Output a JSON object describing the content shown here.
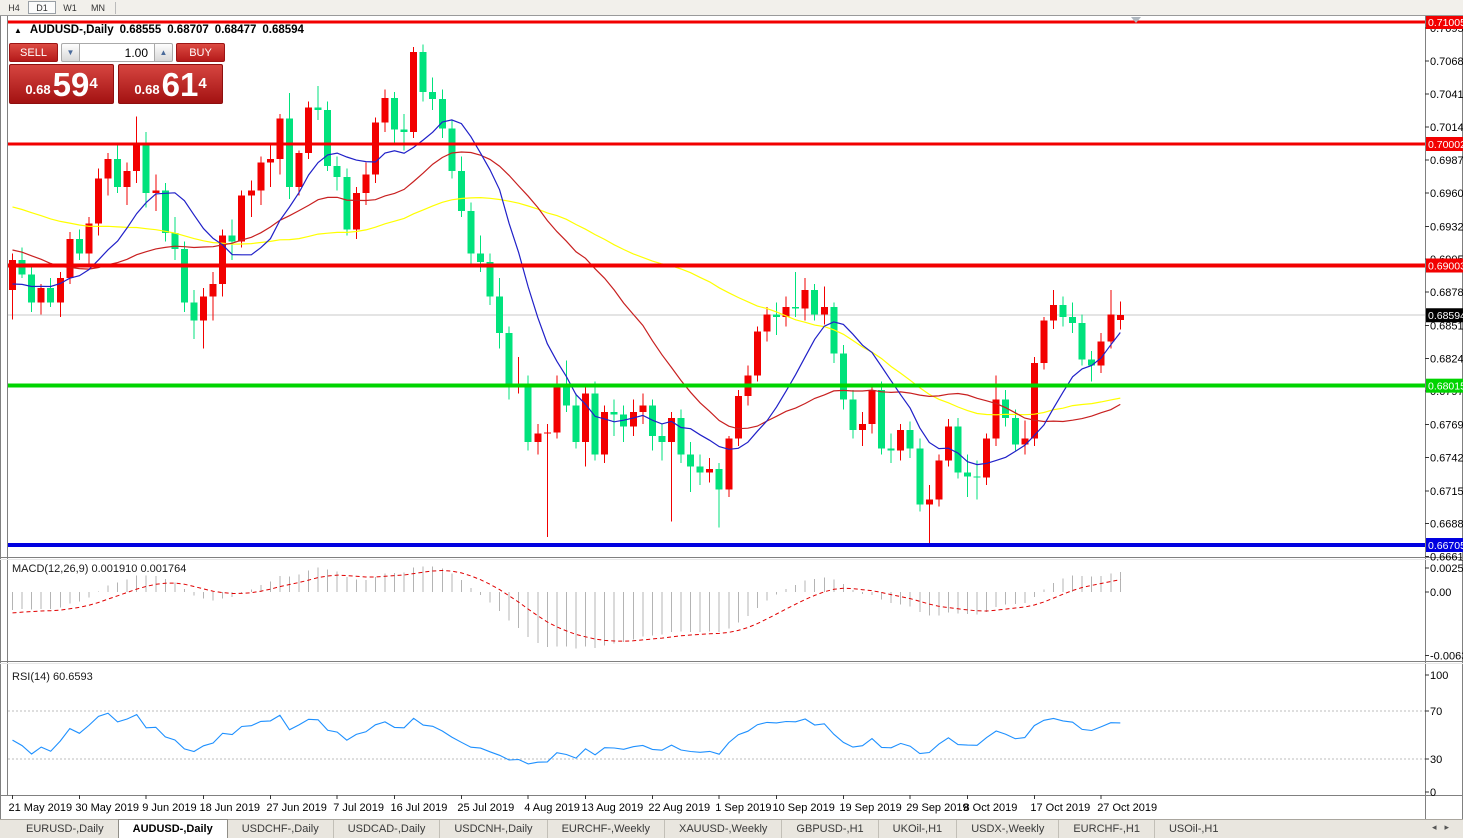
{
  "toolbar": {
    "timeframes": [
      {
        "label": "H4",
        "active": false
      },
      {
        "label": "D1",
        "active": true
      },
      {
        "label": "W1",
        "active": false
      },
      {
        "label": "MN",
        "active": false
      }
    ]
  },
  "chart": {
    "symbol_label": "AUDUSD-,Daily",
    "open": "0.68555",
    "high": "0.68707",
    "low": "0.68477",
    "close": "0.68594",
    "collapse_icon": "▲"
  },
  "trade_panel": {
    "sell_label": "SELL",
    "buy_label": "BUY",
    "volume": "1.00",
    "spin_down": "▼",
    "spin_up": "▲",
    "sell_price": {
      "small": "0.68",
      "big": "59",
      "sup": "4"
    },
    "buy_price": {
      "small": "0.68",
      "big": "61",
      "sup": "4"
    }
  },
  "indicators": {
    "macd": {
      "name": "MACD(12,26,9)",
      "value_main": "0.001910",
      "value_signal": "0.001764"
    },
    "rsi": {
      "name": "RSI(14)",
      "value": "60.6593"
    }
  },
  "tabs": [
    {
      "label": "EURUSD-,Daily",
      "active": false
    },
    {
      "label": "AUDUSD-,Daily",
      "active": true
    },
    {
      "label": "USDCHF-,Daily",
      "active": false
    },
    {
      "label": "USDCAD-,Daily",
      "active": false
    },
    {
      "label": "USDCNH-,Daily",
      "active": false
    },
    {
      "label": "EURCHF-,Weekly",
      "active": false
    },
    {
      "label": "XAUUSD-,Weekly",
      "active": false
    },
    {
      "label": "GBPUSD-,H1",
      "active": false
    },
    {
      "label": "UKOil-,H1",
      "active": false
    },
    {
      "label": "USDX-,Weekly",
      "active": false
    },
    {
      "label": "EURCHF-,H1",
      "active": false
    },
    {
      "label": "USOil-,H1",
      "active": false
    }
  ],
  "tab_scroll": {
    "left": "◂",
    "right": "▸"
  },
  "chart_data": {
    "type": "candlestick+indicators",
    "symbol": "AUDUSD",
    "timeframe": "Daily",
    "colors": {
      "bull": "#F20000",
      "bear": "#00E27C",
      "ma_fast": "#2020C8",
      "ma_mid": "#C82020",
      "ma_slow": "#FFFF00",
      "macd_hist": "#B4B4B4",
      "macd_signal": "#E00000",
      "rsi_line": "#1E90FF",
      "rsi_levels": "#BDBDBD",
      "bid_line": "#C8C8C8",
      "bid_label_bg": "#000000"
    },
    "ma_periods": {
      "fast": 10,
      "mid": 25,
      "slow": 50
    },
    "price_axis_ticks": [
      "0.70955",
      "0.70685",
      "0.70415",
      "0.70140",
      "0.69870",
      "0.69600",
      "0.69325",
      "0.69055",
      "0.68785",
      "0.68510",
      "0.68240",
      "0.67970",
      "0.67695",
      "0.67425",
      "0.67150",
      "0.66880",
      "0.66610"
    ],
    "levels": [
      {
        "price": 0.71005,
        "label": "0.71005",
        "color": "#F20000",
        "width": 3,
        "label_fg": "#ffffff"
      },
      {
        "price": 0.70002,
        "label": "0.70002",
        "color": "#F20000",
        "width": 3,
        "label_fg": "#ffffff"
      },
      {
        "price": 0.69003,
        "label": "0.69003",
        "color": "#F20000",
        "width": 4,
        "label_fg": "#ffffff"
      },
      {
        "price": 0.68015,
        "label": "0.68015",
        "color": "#00D400",
        "width": 4,
        "label_fg": "#ffffff"
      },
      {
        "price": 0.66705,
        "label": "0.66705",
        "color": "#0000E0",
        "width": 4,
        "label_fg": "#ffffff"
      }
    ],
    "bid": {
      "price": 0.68594,
      "label": "0.68594"
    },
    "macd_axis_ticks": [
      {
        "value": 0.002574,
        "label": "0.002574"
      },
      {
        "value": 0.0,
        "label": "0.00"
      },
      {
        "value": -0.006326,
        "label": "-0.006326"
      }
    ],
    "rsi_axis_ticks": [
      {
        "value": 100,
        "label": "100"
      },
      {
        "value": 70,
        "label": "70"
      },
      {
        "value": 30,
        "label": "30"
      },
      {
        "value": 0,
        "label": "0"
      }
    ],
    "rsi_levels": [
      70,
      30
    ],
    "time_labels": [
      {
        "i": 0,
        "t": "21 May 2019"
      },
      {
        "i": 7,
        "t": "30 May 2019"
      },
      {
        "i": 14,
        "t": "9 Jun 2019"
      },
      {
        "i": 20,
        "t": "18 Jun 2019"
      },
      {
        "i": 27,
        "t": "27 Jun 2019"
      },
      {
        "i": 34,
        "t": "7 Jul 2019"
      },
      {
        "i": 40,
        "t": "16 Jul 2019"
      },
      {
        "i": 47,
        "t": "25 Jul 2019"
      },
      {
        "i": 54,
        "t": "4 Aug 2019"
      },
      {
        "i": 60,
        "t": "13 Aug 2019"
      },
      {
        "i": 67,
        "t": "22 Aug 2019"
      },
      {
        "i": 74,
        "t": "1 Sep 2019"
      },
      {
        "i": 80,
        "t": "10 Sep 2019"
      },
      {
        "i": 87,
        "t": "19 Sep 2019"
      },
      {
        "i": 94,
        "t": "29 Sep 2019"
      },
      {
        "i": 100,
        "t": "8 Oct 2019"
      },
      {
        "i": 107,
        "t": "17 Oct 2019"
      },
      {
        "i": 114,
        "t": "27 Oct 2019"
      }
    ],
    "pre_closes": [
      0.7005,
      0.6998,
      0.7002,
      0.7008,
      0.7,
      0.6995,
      0.6988,
      0.6992,
      0.6985,
      0.6978,
      0.6982,
      0.699,
      0.6998,
      0.7005,
      0.701,
      0.7002,
      0.6995,
      0.6988,
      0.698,
      0.6972,
      0.6965,
      0.6958,
      0.695,
      0.696,
      0.6952,
      0.6945,
      0.6938,
      0.6945,
      0.6952,
      0.6958,
      0.695,
      0.6942,
      0.6935,
      0.6945,
      0.6938,
      0.693,
      0.6922,
      0.6912,
      0.6905,
      0.6898,
      0.6905,
      0.6896,
      0.6888,
      0.688,
      0.6872,
      0.6865,
      0.6878,
      0.689,
      0.6885,
      0.6892
    ],
    "candles": [
      [
        0.688,
        0.691,
        0.6856,
        0.6905
      ],
      [
        0.6905,
        0.6915,
        0.689,
        0.6893
      ],
      [
        0.6893,
        0.69,
        0.6862,
        0.687
      ],
      [
        0.687,
        0.6885,
        0.686,
        0.6882
      ],
      [
        0.6882,
        0.689,
        0.6866,
        0.687
      ],
      [
        0.687,
        0.6895,
        0.6858,
        0.689
      ],
      [
        0.689,
        0.6928,
        0.6885,
        0.6922
      ],
      [
        0.6922,
        0.693,
        0.6905,
        0.691
      ],
      [
        0.691,
        0.694,
        0.69,
        0.6935
      ],
      [
        0.6935,
        0.698,
        0.6925,
        0.6972
      ],
      [
        0.6972,
        0.6993,
        0.6958,
        0.6988
      ],
      [
        0.6988,
        0.7,
        0.696,
        0.6965
      ],
      [
        0.6965,
        0.6985,
        0.695,
        0.6978
      ],
      [
        0.6978,
        0.7023,
        0.6968,
        0.7
      ],
      [
        0.7,
        0.701,
        0.6948,
        0.696
      ],
      [
        0.696,
        0.6975,
        0.6945,
        0.6962
      ],
      [
        0.6962,
        0.6968,
        0.692,
        0.6927
      ],
      [
        0.6927,
        0.694,
        0.6905,
        0.6914
      ],
      [
        0.6914,
        0.692,
        0.6862,
        0.687
      ],
      [
        0.687,
        0.688,
        0.684,
        0.6855
      ],
      [
        0.6855,
        0.6882,
        0.6832,
        0.6875
      ],
      [
        0.6875,
        0.6895,
        0.6855,
        0.6885
      ],
      [
        0.6885,
        0.693,
        0.6875,
        0.6925
      ],
      [
        0.6925,
        0.6938,
        0.6905,
        0.692
      ],
      [
        0.692,
        0.6962,
        0.6915,
        0.6958
      ],
      [
        0.6958,
        0.697,
        0.694,
        0.6962
      ],
      [
        0.6962,
        0.699,
        0.695,
        0.6985
      ],
      [
        0.6985,
        0.7,
        0.6965,
        0.6988
      ],
      [
        0.6988,
        0.7025,
        0.6975,
        0.7021
      ],
      [
        0.7021,
        0.7042,
        0.6955,
        0.6965
      ],
      [
        0.6965,
        0.6995,
        0.6958,
        0.6993
      ],
      [
        0.6993,
        0.7035,
        0.6988,
        0.703
      ],
      [
        0.703,
        0.7048,
        0.702,
        0.7028
      ],
      [
        0.7028,
        0.7035,
        0.6978,
        0.6982
      ],
      [
        0.6982,
        0.699,
        0.6962,
        0.6973
      ],
      [
        0.6973,
        0.698,
        0.6925,
        0.693
      ],
      [
        0.693,
        0.6965,
        0.6922,
        0.696
      ],
      [
        0.696,
        0.6985,
        0.695,
        0.6975
      ],
      [
        0.6975,
        0.7022,
        0.6968,
        0.7018
      ],
      [
        0.7018,
        0.7045,
        0.701,
        0.7038
      ],
      [
        0.7038,
        0.7043,
        0.7,
        0.7012
      ],
      [
        0.7012,
        0.7025,
        0.6995,
        0.701
      ],
      [
        0.701,
        0.708,
        0.7005,
        0.7076
      ],
      [
        0.7076,
        0.7082,
        0.7035,
        0.7043
      ],
      [
        0.7043,
        0.7055,
        0.7028,
        0.7037
      ],
      [
        0.7037,
        0.7045,
        0.7005,
        0.7013
      ],
      [
        0.7013,
        0.702,
        0.6972,
        0.6978
      ],
      [
        0.6978,
        0.699,
        0.694,
        0.6945
      ],
      [
        0.6945,
        0.6952,
        0.69,
        0.691
      ],
      [
        0.691,
        0.6925,
        0.6895,
        0.6903
      ],
      [
        0.6903,
        0.691,
        0.6868,
        0.6875
      ],
      [
        0.6875,
        0.689,
        0.6832,
        0.6845
      ],
      [
        0.6845,
        0.685,
        0.679,
        0.68
      ],
      [
        0.68,
        0.6825,
        0.6795,
        0.6802
      ],
      [
        0.6802,
        0.681,
        0.6748,
        0.6755
      ],
      [
        0.6755,
        0.677,
        0.6745,
        0.6762
      ],
      [
        0.6762,
        0.677,
        0.6677,
        0.6763
      ],
      [
        0.6763,
        0.681,
        0.6758,
        0.68
      ],
      [
        0.68,
        0.6822,
        0.678,
        0.6785
      ],
      [
        0.6785,
        0.6795,
        0.675,
        0.6755
      ],
      [
        0.6755,
        0.68,
        0.6735,
        0.6795
      ],
      [
        0.6795,
        0.6805,
        0.674,
        0.6745
      ],
      [
        0.6745,
        0.6785,
        0.6738,
        0.678
      ],
      [
        0.678,
        0.679,
        0.676,
        0.6778
      ],
      [
        0.6778,
        0.6785,
        0.6755,
        0.6768
      ],
      [
        0.6768,
        0.679,
        0.676,
        0.678
      ],
      [
        0.678,
        0.6795,
        0.677,
        0.6785
      ],
      [
        0.6785,
        0.679,
        0.6748,
        0.676
      ],
      [
        0.676,
        0.677,
        0.674,
        0.6755
      ],
      [
        0.6755,
        0.678,
        0.669,
        0.6775
      ],
      [
        0.6775,
        0.6782,
        0.6738,
        0.6745
      ],
      [
        0.6745,
        0.6755,
        0.6714,
        0.6735
      ],
      [
        0.6735,
        0.6745,
        0.672,
        0.673
      ],
      [
        0.673,
        0.6742,
        0.6722,
        0.6733
      ],
      [
        0.6733,
        0.6738,
        0.6685,
        0.6716
      ],
      [
        0.6716,
        0.676,
        0.671,
        0.6758
      ],
      [
        0.6758,
        0.6798,
        0.6752,
        0.6793
      ],
      [
        0.6793,
        0.6818,
        0.6785,
        0.681
      ],
      [
        0.681,
        0.685,
        0.6805,
        0.6846
      ],
      [
        0.6846,
        0.6866,
        0.6838,
        0.686
      ],
      [
        0.686,
        0.687,
        0.6843,
        0.6858
      ],
      [
        0.6858,
        0.6875,
        0.685,
        0.6866
      ],
      [
        0.6866,
        0.6895,
        0.6858,
        0.6865
      ],
      [
        0.6865,
        0.689,
        0.6855,
        0.688
      ],
      [
        0.688,
        0.6885,
        0.6855,
        0.686
      ],
      [
        0.686,
        0.6883,
        0.6852,
        0.6866
      ],
      [
        0.6866,
        0.687,
        0.682,
        0.6828
      ],
      [
        0.6828,
        0.6835,
        0.6782,
        0.679
      ],
      [
        0.679,
        0.6798,
        0.6758,
        0.6765
      ],
      [
        0.6765,
        0.678,
        0.6752,
        0.677
      ],
      [
        0.677,
        0.68,
        0.6762,
        0.6798
      ],
      [
        0.6798,
        0.6805,
        0.6745,
        0.675
      ],
      [
        0.675,
        0.6762,
        0.6738,
        0.6748
      ],
      [
        0.6748,
        0.677,
        0.674,
        0.6765
      ],
      [
        0.6765,
        0.6772,
        0.6742,
        0.675
      ],
      [
        0.675,
        0.6758,
        0.6698,
        0.6704
      ],
      [
        0.6704,
        0.672,
        0.667,
        0.6708
      ],
      [
        0.6708,
        0.6745,
        0.6702,
        0.674
      ],
      [
        0.674,
        0.6774,
        0.6735,
        0.6768
      ],
      [
        0.6768,
        0.6775,
        0.6725,
        0.673
      ],
      [
        0.673,
        0.6745,
        0.671,
        0.6727
      ],
      [
        0.6727,
        0.674,
        0.6708,
        0.6726
      ],
      [
        0.6726,
        0.6762,
        0.672,
        0.6758
      ],
      [
        0.6758,
        0.681,
        0.6752,
        0.679
      ],
      [
        0.679,
        0.6798,
        0.6768,
        0.6775
      ],
      [
        0.6775,
        0.6782,
        0.6748,
        0.6753
      ],
      [
        0.6753,
        0.6773,
        0.6745,
        0.6758
      ],
      [
        0.6758,
        0.6825,
        0.6752,
        0.682
      ],
      [
        0.682,
        0.6858,
        0.6815,
        0.6855
      ],
      [
        0.6855,
        0.688,
        0.6848,
        0.6868
      ],
      [
        0.6868,
        0.6875,
        0.685,
        0.6858
      ],
      [
        0.6858,
        0.687,
        0.6845,
        0.6853
      ],
      [
        0.6853,
        0.686,
        0.6818,
        0.6823
      ],
      [
        0.6823,
        0.683,
        0.6805,
        0.6818
      ],
      [
        0.6818,
        0.6845,
        0.6812,
        0.6838
      ],
      [
        0.6838,
        0.688,
        0.6832,
        0.686
      ],
      [
        0.68555,
        0.68707,
        0.68477,
        0.68594
      ]
    ]
  }
}
